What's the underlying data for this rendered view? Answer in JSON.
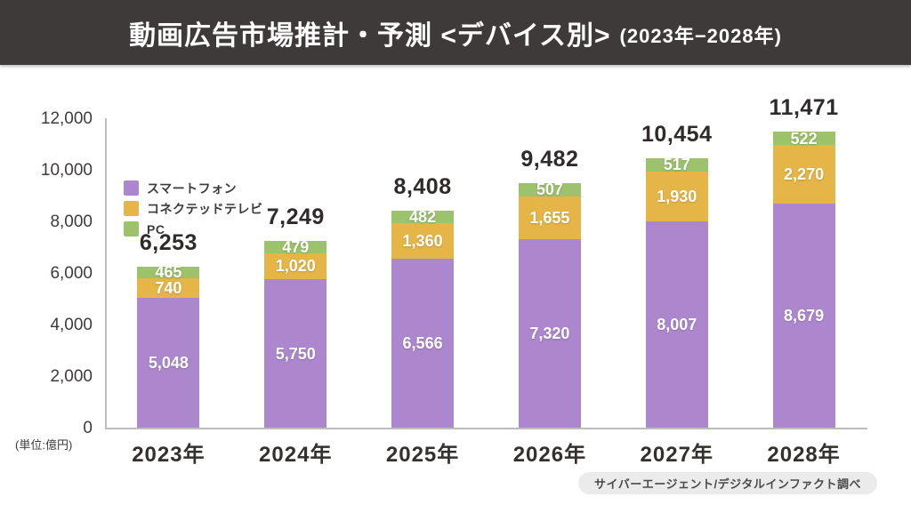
{
  "header": {
    "title": "動画広告市場推計・予測 <デバイス別>",
    "subtitle": "(2023年−2028年)"
  },
  "chart_data": {
    "type": "bar",
    "variant": "stacked",
    "title": "動画広告市場推計・予測 <デバイス別> (2023年−2028年)",
    "categories": [
      "2023年",
      "2024年",
      "2025年",
      "2026年",
      "2027年",
      "2028年"
    ],
    "series": [
      {
        "name": "スマートフォン",
        "key": "smartphone",
        "color": "#AC87CE",
        "values": [
          5048,
          5750,
          6566,
          7320,
          8007,
          8679
        ]
      },
      {
        "name": "コネクテッドテレビ",
        "key": "connected-tv",
        "color": "#E5B647",
        "values": [
          740,
          1020,
          1360,
          1655,
          1930,
          2270
        ]
      },
      {
        "name": "PC",
        "key": "pc",
        "color": "#9CC26B",
        "values": [
          465,
          479,
          482,
          507,
          517,
          522
        ]
      }
    ],
    "totals": [
      6253,
      7249,
      8408,
      9482,
      10454,
      11471
    ],
    "ylim": [
      0,
      12000
    ],
    "yticks": [
      0,
      2000,
      4000,
      6000,
      8000,
      10000,
      12000
    ],
    "ytick_labels": [
      "0",
      "2,000",
      "4,000",
      "6,000",
      "8,000",
      "10,000",
      "12,000"
    ],
    "y_unit": "(単位:億円)",
    "xlabel": "",
    "ylabel": "",
    "grid": false,
    "legend_position": "top-left",
    "axis_color": "#BDBDBD"
  },
  "footer": {
    "source": "サイバーエージェント/デジタルインファクト調べ"
  }
}
